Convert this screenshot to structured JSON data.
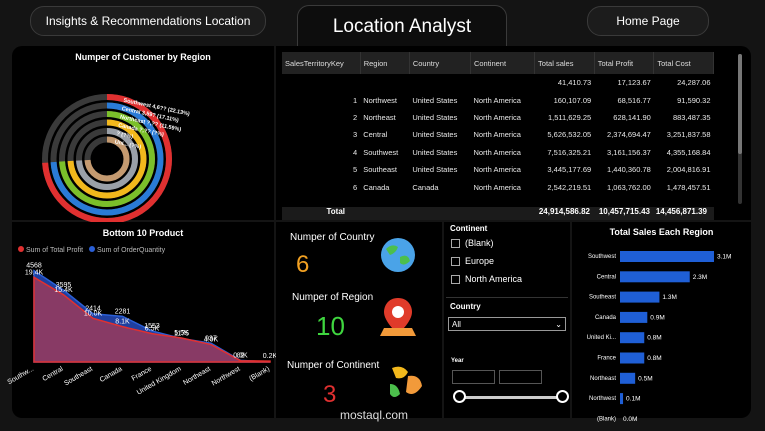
{
  "nav": {
    "insights": "Insights & Recommendations Location",
    "title": "Location Analyst",
    "home": "Home Page"
  },
  "donut": {
    "title": "Numper of Customer by Region",
    "rings": [
      {
        "label": "Southwest 4,6?? (22.13%)",
        "color": "#e03030"
      },
      {
        "label": "Central 3,59? (17.11%)",
        "color": "#2a7bd6"
      },
      {
        "label": "Northeast ?,?? (11.59%)",
        "color": "#7bbf2a"
      },
      {
        "label": "Canada ?,?? (?%)",
        "color": "#f2b81c"
      },
      {
        "label": "? (?%)",
        "color": "#9aa0a8"
      },
      {
        "label": "Uni... (?%)",
        "color": "#c49a70"
      }
    ]
  },
  "table": {
    "headers": [
      "SalesTerritoryKey",
      "Region",
      "Country",
      "Continent",
      "Total sales",
      "Total Profit",
      "Total Cost"
    ],
    "rows": [
      [
        "",
        "",
        "",
        "",
        "41,410.73",
        "17,123.67",
        "24,287.06"
      ],
      [
        "1",
        "Northwest",
        "United States",
        "North America",
        "160,107.09",
        "68,516.77",
        "91,590.32"
      ],
      [
        "2",
        "Northeast",
        "United States",
        "North America",
        "1,511,629.25",
        "628,141.90",
        "883,487.35"
      ],
      [
        "3",
        "Central",
        "United States",
        "North America",
        "5,626,532.05",
        "2,374,694.47",
        "3,251,837.58"
      ],
      [
        "4",
        "Southwest",
        "United States",
        "North America",
        "7,516,325.21",
        "3,161,156.37",
        "4,355,168.84"
      ],
      [
        "5",
        "Southeast",
        "United States",
        "North America",
        "3,445,177.69",
        "1,440,360.78",
        "2,004,816.91"
      ],
      [
        "6",
        "Canada",
        "Canada",
        "North America",
        "2,542,219.51",
        "1,063,762.00",
        "1,478,457.51"
      ]
    ],
    "total": [
      "Total",
      "",
      "",
      "",
      "24,914,586.82",
      "10,457,715.43",
      "14,456,871.39"
    ]
  },
  "bottom10": {
    "title": "Bottom 10 Product",
    "legend_profit": "Sum of Total Profit",
    "legend_qty": "Sum of OrderQuantity",
    "chart_data": {
      "type": "area",
      "categories": [
        "Southw...",
        "Central",
        "Southeast",
        "Canada",
        "France",
        "United Kingdom",
        "Northeast",
        "Northwest",
        "(Blank)"
      ],
      "series": [
        {
          "name": "Sum of Total Profit",
          "values": [
            19.4,
            15.4,
            10.0,
            8.1,
            6.5,
            5.5,
            4.0,
            0.3,
            0.2
          ],
          "labels": [
            "19.4K",
            "15.4K",
            "10.0K",
            "8.1K",
            "6.5K",
            "5.5K",
            "4.0K",
            "0.3K",
            "0.2K"
          ]
        },
        {
          "name": "Sum of OrderQuantity",
          "values": [
            4568,
            3595,
            2414,
            2281,
            1553,
            1175,
            937,
            82,
            0
          ],
          "labels": [
            "4568",
            "3595",
            "2414",
            "2281",
            "1553",
            "1175",
            "937",
            "82",
            ""
          ]
        }
      ]
    }
  },
  "kpis": [
    {
      "label": "Numper of Country",
      "value": "6",
      "color": "#f2a122"
    },
    {
      "label": "Numper of Region",
      "value": "10",
      "color": "#3fd63f"
    },
    {
      "label": "Numper of Continent",
      "value": "3",
      "color": "#e03030"
    }
  ],
  "slicers": {
    "continent_title": "Continent",
    "continent_options": [
      "(Blank)",
      "Europe",
      "North America"
    ],
    "country_title": "Country",
    "country_value": "All",
    "year_title": "Year"
  },
  "region_sales": {
    "title": "Total Sales Each Region",
    "chart_data": {
      "type": "bar",
      "categories": [
        "Southwest",
        "Central",
        "Southeast",
        "Canada",
        "United Ki...",
        "France",
        "Northeast",
        "Northwest",
        "(Blank)"
      ],
      "values": [
        3.1,
        2.3,
        1.3,
        0.9,
        0.8,
        0.8,
        0.5,
        0.1,
        0.0
      ],
      "labels": [
        "3.1M",
        "2.3M",
        "1.3M",
        "0.9M",
        "0.8M",
        "0.8M",
        "0.5M",
        "0.1M",
        "0.0M"
      ]
    }
  },
  "watermark": "mostaql.com"
}
